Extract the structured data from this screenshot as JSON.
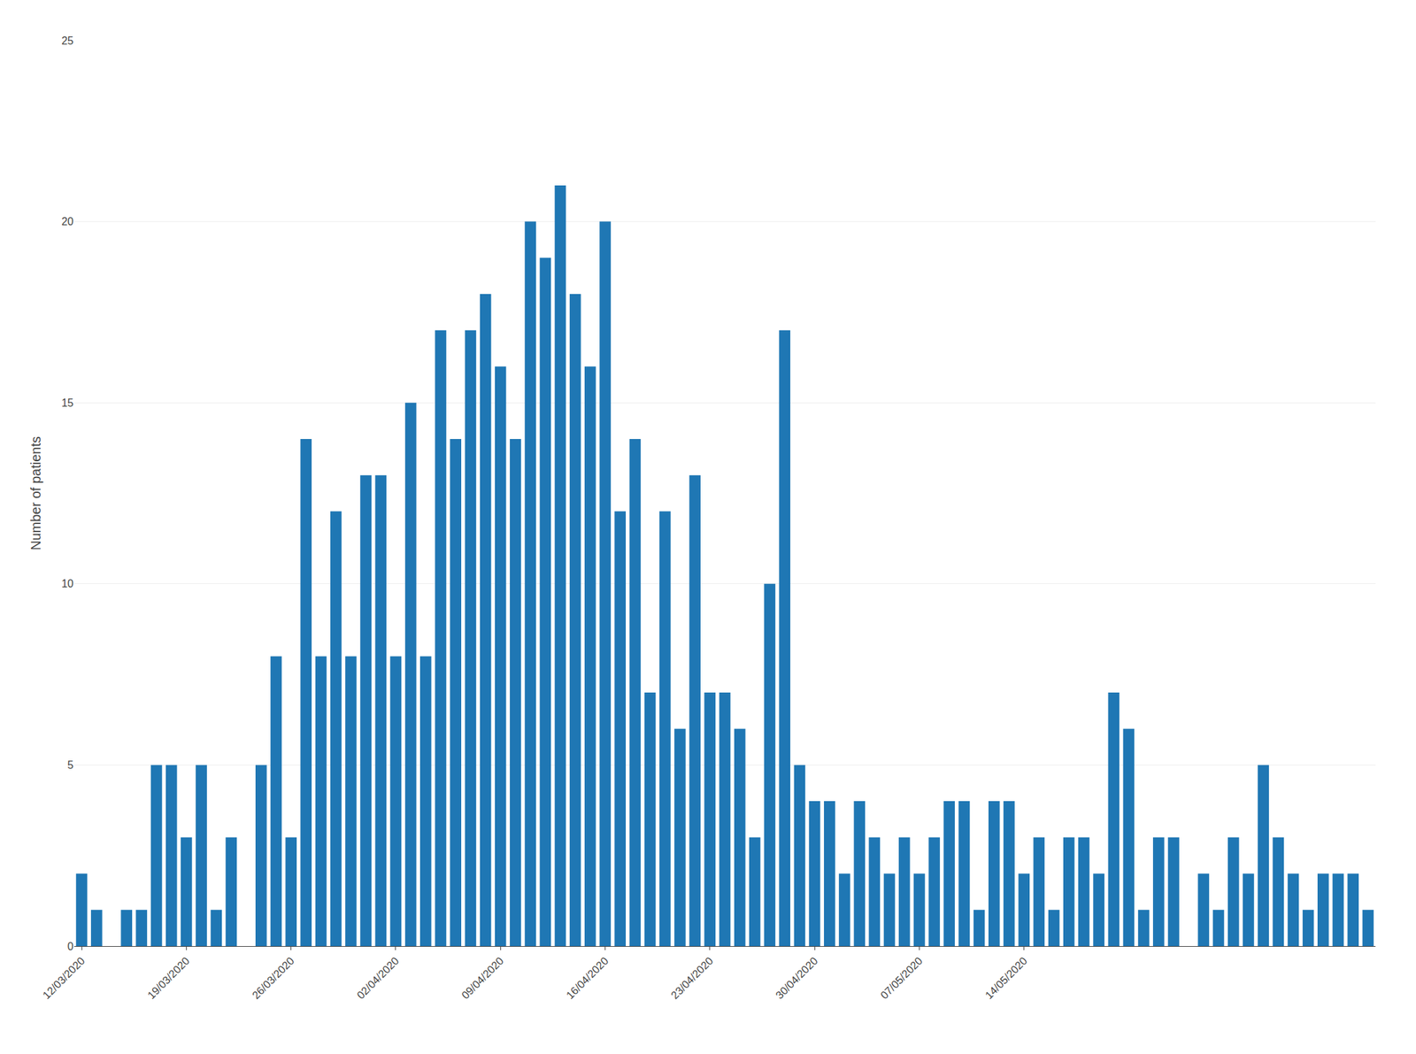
{
  "chart_data": {
    "type": "bar",
    "ylabel": "Number of patients",
    "categories": [
      "12/03/2020",
      null,
      null,
      null,
      null,
      null,
      null,
      "19/03/2020",
      null,
      null,
      null,
      null,
      null,
      null,
      "26/03/2020",
      null,
      null,
      null,
      null,
      null,
      null,
      "02/04/2020",
      null,
      null,
      null,
      null,
      null,
      null,
      "09/04/2020",
      null,
      null,
      null,
      null,
      null,
      null,
      "16/04/2020",
      null,
      null,
      null,
      null,
      null,
      null,
      "23/04/2020",
      null,
      null,
      null,
      null,
      null,
      null,
      "30/04/2020",
      null,
      null,
      null,
      null,
      null,
      null,
      "07/05/2020",
      null,
      null,
      null,
      null,
      null,
      null,
      "14/05/2020",
      null,
      null,
      null,
      null,
      null,
      null,
      null,
      null,
      null,
      null,
      null,
      null,
      null,
      null,
      null,
      null,
      null,
      null,
      null,
      null,
      null,
      null,
      null
    ],
    "values": [
      2,
      1,
      0,
      1,
      1,
      5,
      5,
      3,
      5,
      1,
      3,
      0,
      5,
      8,
      3,
      14,
      8,
      12,
      8,
      13,
      13,
      8,
      15,
      8,
      17,
      14,
      17,
      18,
      16,
      14,
      20,
      19,
      21,
      18,
      16,
      20,
      12,
      14,
      7,
      12,
      6,
      13,
      7,
      7,
      6,
      3,
      10,
      17,
      5,
      4,
      4,
      2,
      4,
      3,
      2,
      3,
      2,
      3,
      4,
      4,
      1,
      4,
      4,
      2,
      3,
      1,
      3,
      3,
      2,
      7,
      6,
      1,
      3,
      3,
      0,
      2,
      1,
      3,
      2,
      5,
      3,
      2,
      1,
      2,
      2,
      2,
      1
    ],
    "ylim": [
      0,
      25
    ],
    "yticks": [
      0,
      5,
      10,
      15,
      20,
      25
    ],
    "grid": true
  }
}
